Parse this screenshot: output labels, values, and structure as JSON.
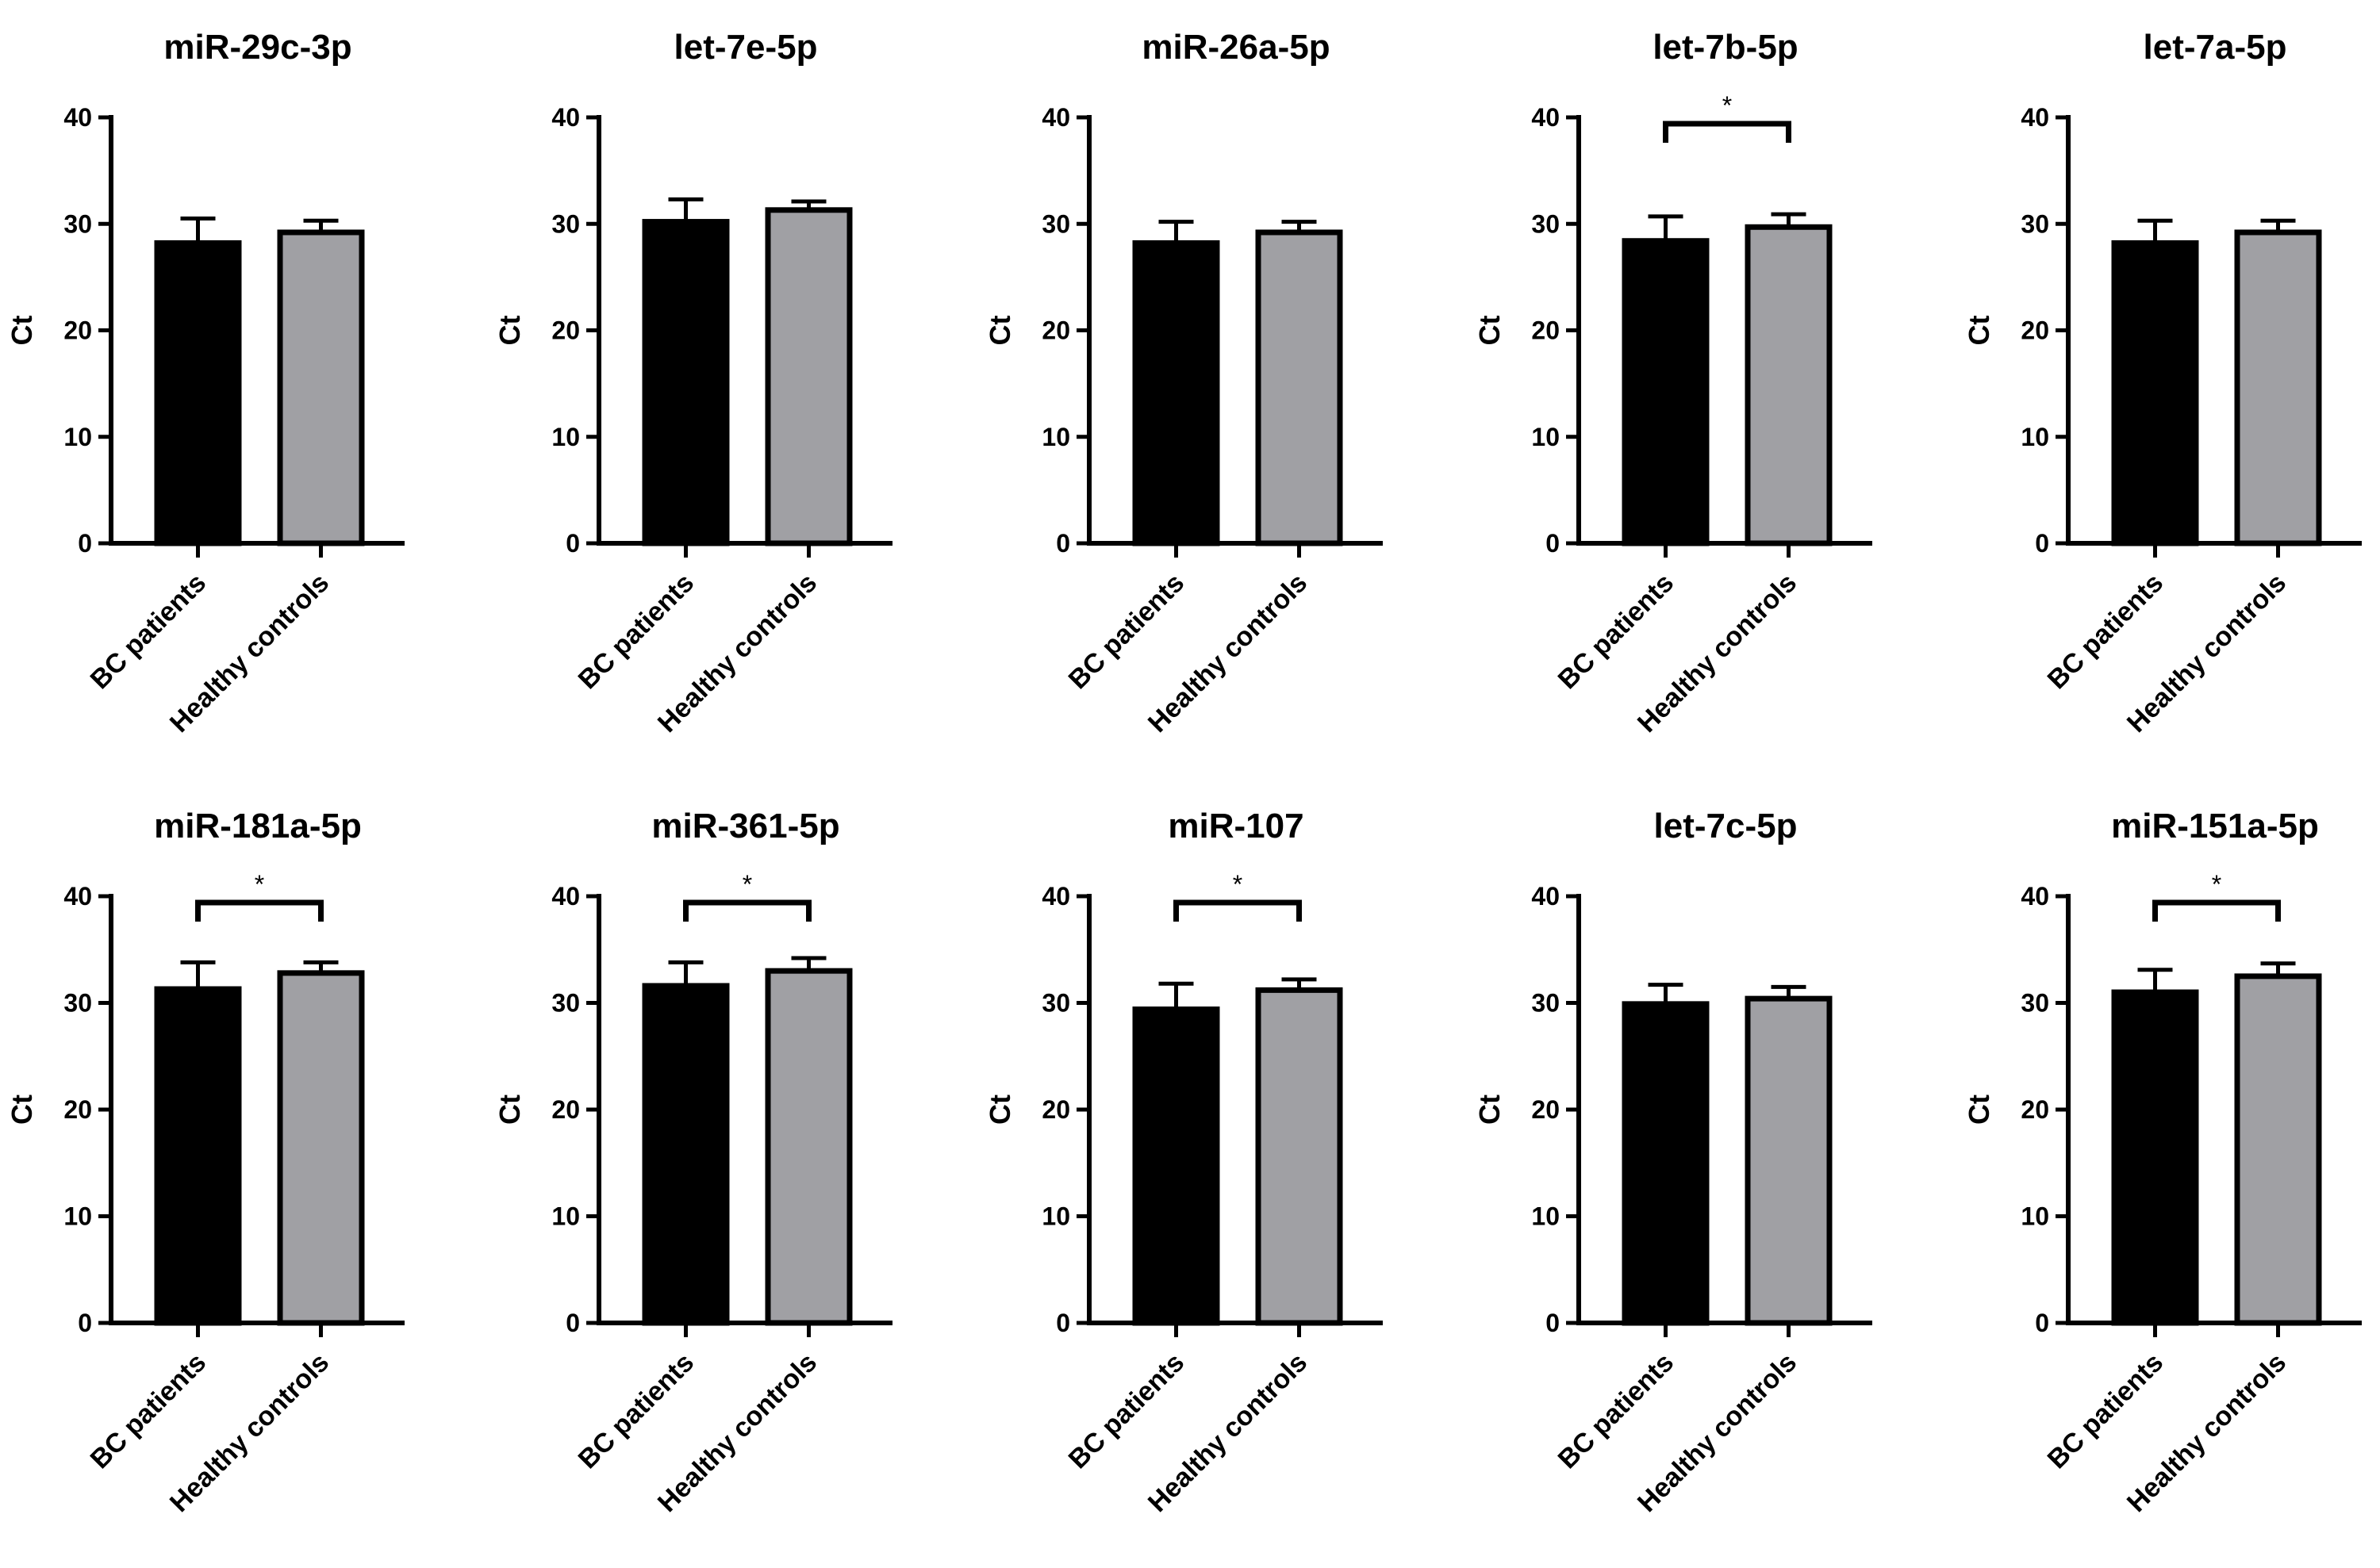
{
  "figure": {
    "series": [
      {
        "name": "BC patients",
        "color": "#000000"
      },
      {
        "name": "Healthy controls",
        "color": "#a0a0a4"
      }
    ],
    "outline_color": "#000000"
  },
  "chart_data": [
    {
      "type": "bar",
      "title": "miR-29c-3p",
      "ylabel": "Ct",
      "categories": [
        "BC patients",
        "Healthy controls"
      ],
      "values": [
        28.2,
        29.2
      ],
      "errors": [
        2.3,
        1.1
      ],
      "ylim": [
        0,
        40
      ],
      "yticks": [
        "0",
        "10",
        "20",
        "30",
        "40"
      ],
      "significance": ""
    },
    {
      "type": "bar",
      "title": "let-7e-5p",
      "ylabel": "Ct",
      "categories": [
        "BC patients",
        "Healthy controls"
      ],
      "values": [
        30.2,
        31.3
      ],
      "errors": [
        2.1,
        0.8
      ],
      "ylim": [
        0,
        40
      ],
      "yticks": [
        "0",
        "10",
        "20",
        "30",
        "40"
      ],
      "significance": ""
    },
    {
      "type": "bar",
      "title": "miR-26a-5p",
      "ylabel": "Ct",
      "categories": [
        "BC patients",
        "Healthy controls"
      ],
      "values": [
        28.2,
        29.2
      ],
      "errors": [
        2.0,
        1.0
      ],
      "ylim": [
        0,
        40
      ],
      "yticks": [
        "0",
        "10",
        "20",
        "30",
        "40"
      ],
      "significance": ""
    },
    {
      "type": "bar",
      "title": "let-7b-5p",
      "ylabel": "Ct",
      "categories": [
        "BC patients",
        "Healthy controls"
      ],
      "values": [
        28.4,
        29.7
      ],
      "errors": [
        2.3,
        1.2
      ],
      "ylim": [
        0,
        40
      ],
      "yticks": [
        "0",
        "10",
        "20",
        "30",
        "40"
      ],
      "significance": "*"
    },
    {
      "type": "bar",
      "title": "let-7a-5p",
      "ylabel": "Ct",
      "categories": [
        "BC patients",
        "Healthy controls"
      ],
      "values": [
        28.2,
        29.2
      ],
      "errors": [
        2.1,
        1.1
      ],
      "ylim": [
        0,
        40
      ],
      "yticks": [
        "0",
        "10",
        "20",
        "30",
        "40"
      ],
      "significance": ""
    },
    {
      "type": "bar",
      "title": "miR-181a-5p",
      "ylabel": "Ct",
      "categories": [
        "BC patients",
        "Healthy controls"
      ],
      "values": [
        31.3,
        32.8
      ],
      "errors": [
        2.5,
        1.0
      ],
      "ylim": [
        0,
        40
      ],
      "yticks": [
        "0",
        "10",
        "20",
        "30",
        "40"
      ],
      "significance": "*"
    },
    {
      "type": "bar",
      "title": "miR-361-5p",
      "ylabel": "Ct",
      "categories": [
        "BC patients",
        "Healthy controls"
      ],
      "values": [
        31.6,
        33.0
      ],
      "errors": [
        2.2,
        1.2
      ],
      "ylim": [
        0,
        40
      ],
      "yticks": [
        "0",
        "10",
        "20",
        "30",
        "40"
      ],
      "significance": "*"
    },
    {
      "type": "bar",
      "title": "miR-107",
      "ylabel": "Ct",
      "categories": [
        "BC patients",
        "Healthy controls"
      ],
      "values": [
        29.4,
        31.2
      ],
      "errors": [
        2.4,
        1.0
      ],
      "ylim": [
        0,
        40
      ],
      "yticks": [
        "0",
        "10",
        "20",
        "30",
        "40"
      ],
      "significance": "*"
    },
    {
      "type": "bar",
      "title": "let-7c-5p",
      "ylabel": "Ct",
      "categories": [
        "BC patients",
        "Healthy controls"
      ],
      "values": [
        29.9,
        30.4
      ],
      "errors": [
        1.8,
        1.1
      ],
      "ylim": [
        0,
        40
      ],
      "yticks": [
        "0",
        "10",
        "20",
        "30",
        "40"
      ],
      "significance": ""
    },
    {
      "type": "bar",
      "title": "miR-151a-5p",
      "ylabel": "Ct",
      "categories": [
        "BC patients",
        "Healthy controls"
      ],
      "values": [
        31.0,
        32.5
      ],
      "errors": [
        2.1,
        1.2
      ],
      "ylim": [
        0,
        40
      ],
      "yticks": [
        "0",
        "10",
        "20",
        "30",
        "40"
      ],
      "significance": "*"
    }
  ]
}
